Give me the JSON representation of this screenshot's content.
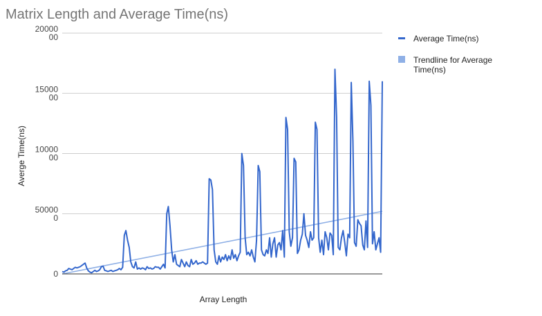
{
  "chart_data": {
    "type": "line",
    "title": "Matrix Length and Average Time(ns)",
    "xlabel": "Array Length",
    "ylabel": "Averge Time(ns)",
    "ylim": [
      0,
      2000000
    ],
    "yticks": [
      {
        "value": 2000000,
        "lines": [
          "20000",
          "00"
        ]
      },
      {
        "value": 1500000,
        "lines": [
          "15000",
          "00"
        ]
      },
      {
        "value": 1000000,
        "lines": [
          "10000",
          "00"
        ]
      },
      {
        "value": 500000,
        "lines": [
          "50000",
          "0"
        ]
      },
      {
        "value": 0,
        "lines": [
          "0"
        ]
      }
    ],
    "grid": true,
    "legend_position": "right",
    "series": [
      {
        "name": "Average Time(ns)",
        "color": "#3366cc",
        "values": [
          20000,
          15000,
          25000,
          30000,
          45000,
          40000,
          35000,
          45000,
          55000,
          50000,
          55000,
          60000,
          70000,
          80000,
          90000,
          50000,
          25000,
          15000,
          10000,
          20000,
          30000,
          20000,
          25000,
          35000,
          60000,
          65000,
          30000,
          25000,
          20000,
          25000,
          30000,
          20000,
          25000,
          30000,
          35000,
          45000,
          35000,
          55000,
          320000,
          360000,
          280000,
          220000,
          100000,
          60000,
          50000,
          100000,
          40000,
          50000,
          40000,
          50000,
          45000,
          35000,
          60000,
          45000,
          50000,
          40000,
          45000,
          60000,
          55000,
          55000,
          40000,
          60000,
          80000,
          50000,
          500000,
          560000,
          400000,
          200000,
          100000,
          160000,
          80000,
          70000,
          60000,
          120000,
          90000,
          60000,
          100000,
          70000,
          60000,
          120000,
          80000,
          90000,
          110000,
          80000,
          90000,
          90000,
          100000,
          90000,
          80000,
          90000,
          790000,
          780000,
          700000,
          200000,
          100000,
          80000,
          150000,
          100000,
          140000,
          120000,
          160000,
          110000,
          150000,
          120000,
          200000,
          130000,
          160000,
          110000,
          150000,
          180000,
          1000000,
          900000,
          300000,
          160000,
          180000,
          150000,
          200000,
          140000,
          100000,
          280000,
          900000,
          850000,
          200000,
          160000,
          150000,
          200000,
          170000,
          300000,
          140000,
          250000,
          300000,
          140000,
          240000,
          260000,
          200000,
          360000,
          140000,
          1300000,
          1200000,
          350000,
          230000,
          300000,
          960000,
          930000,
          170000,
          200000,
          280000,
          330000,
          500000,
          320000,
          280000,
          220000,
          350000,
          280000,
          300000,
          1260000,
          1200000,
          300000,
          180000,
          280000,
          160000,
          350000,
          300000,
          200000,
          340000,
          320000,
          160000,
          1700000,
          1300000,
          220000,
          200000,
          300000,
          360000,
          260000,
          150000,
          330000,
          300000,
          1590000,
          1100000,
          260000,
          230000,
          450000,
          420000,
          400000,
          240000,
          200000,
          440000,
          220000,
          1600000,
          1400000,
          250000,
          350000,
          200000,
          250000,
          300000,
          180000,
          1600000
        ],
        "show_legend": true
      },
      {
        "name": "Trendline for Average Time(ns)",
        "color": "#8fb0e6",
        "type": "linear-trend",
        "start": 0,
        "end": 520000,
        "show_legend": true
      }
    ]
  }
}
